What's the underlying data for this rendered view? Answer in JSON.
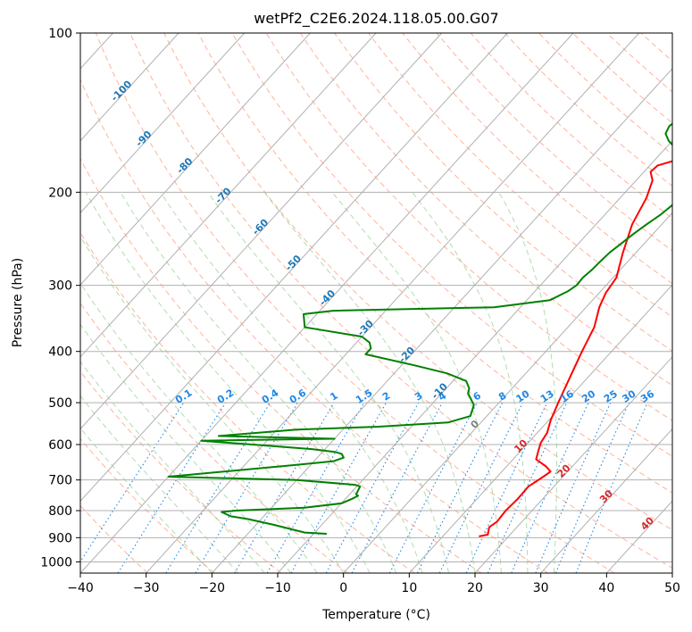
{
  "chart_data": {
    "type": "line",
    "title": "wetPf2_C2E6.2024.118.05.00.G07",
    "xlabel": "Temperature (°C)",
    "ylabel": "Pressure (hPa)",
    "xlim": [
      -40,
      50
    ],
    "ylim": [
      1050,
      100
    ],
    "y_scale": "log",
    "grid": true,
    "x_ticks": [
      -40,
      -30,
      -20,
      -10,
      0,
      10,
      20,
      30,
      40,
      50
    ],
    "y_ticks": [
      100,
      200,
      300,
      400,
      500,
      600,
      700,
      800,
      900,
      1000
    ],
    "colors": {
      "temperature": "#ff0000",
      "dewpoint": "#008000",
      "isotherm": "#b0b0b0",
      "dry_adiabat": "#ff9a7a",
      "moist_adiabat": "#8fcf8f",
      "mixing_ratio": "#1e88e5",
      "adiabat_label": "#1f77b4",
      "isotherm_label": "#d62728",
      "zero_label": "#7f7f7f"
    },
    "series": [
      {
        "key": "temperature",
        "points": [
          [
            15.5,
            895
          ],
          [
            16.6,
            888
          ],
          [
            15.8,
            860
          ],
          [
            16.2,
            840
          ],
          [
            16.0,
            800
          ],
          [
            16.2,
            760
          ],
          [
            16.1,
            720
          ],
          [
            17.0,
            690
          ],
          [
            17.4,
            675
          ],
          [
            16.0,
            660
          ],
          [
            13.5,
            640
          ],
          [
            12.6,
            615
          ],
          [
            11.9,
            595
          ],
          [
            11.5,
            570
          ],
          [
            10.3,
            540
          ],
          [
            9.0,
            500
          ],
          [
            7.0,
            440
          ],
          [
            5.5,
            400
          ],
          [
            4.0,
            360
          ],
          [
            2.0,
            330
          ],
          [
            1.0,
            310
          ],
          [
            0.5,
            290
          ],
          [
            -2.0,
            260
          ],
          [
            -4.5,
            230
          ],
          [
            -6.0,
            205
          ],
          [
            -7.5,
            190
          ],
          [
            -9.0,
            183
          ],
          [
            -8.8,
            178
          ],
          [
            -5.8,
            172
          ],
          [
            -4.3,
            170
          ],
          [
            -2.5,
            167
          ],
          [
            -1.4,
            165
          ],
          [
            -1.1,
            162
          ],
          [
            -0.4,
            155
          ],
          [
            -0.6,
            145
          ],
          [
            -0.6,
            135
          ],
          [
            -1.0,
            128
          ],
          [
            -1.0,
            122
          ],
          [
            -0.9,
            117
          ],
          [
            0.0,
            114
          ],
          [
            1.0,
            112
          ],
          [
            2.0,
            110
          ],
          [
            3.5,
            107
          ],
          [
            5.0,
            104
          ],
          [
            6.5,
            100
          ]
        ]
      },
      {
        "key": "dewpoint",
        "points": [
          [
            -8.0,
            885
          ],
          [
            -11.5,
            880
          ],
          [
            -14.5,
            865
          ],
          [
            -17.5,
            850
          ],
          [
            -22.0,
            830
          ],
          [
            -25.0,
            820
          ],
          [
            -27.0,
            805
          ],
          [
            -25.0,
            800
          ],
          [
            -15.0,
            790
          ],
          [
            -10.0,
            775
          ],
          [
            -9.0,
            760
          ],
          [
            -8.5,
            750
          ],
          [
            -9.0,
            745
          ],
          [
            -9.5,
            720
          ],
          [
            -10.5,
            715
          ],
          [
            -20.0,
            700
          ],
          [
            -40.0,
            690
          ],
          [
            -22.0,
            655
          ],
          [
            -17.0,
            645
          ],
          [
            -16.0,
            635
          ],
          [
            -16.8,
            625
          ],
          [
            -18.0,
            620
          ],
          [
            -22.0,
            612
          ],
          [
            -30.0,
            602
          ],
          [
            -40.0,
            590
          ],
          [
            -20.0,
            585
          ],
          [
            -38.0,
            578
          ],
          [
            -27.0,
            562
          ],
          [
            -15.0,
            555
          ],
          [
            -5.0,
            545
          ],
          [
            -2.5,
            530
          ],
          [
            -3.5,
            505
          ],
          [
            -6.0,
            480
          ],
          [
            -6.5,
            470
          ],
          [
            -8.0,
            455
          ],
          [
            -12.0,
            440
          ],
          [
            -18.0,
            425
          ],
          [
            -27.0,
            405
          ],
          [
            -27.0,
            395
          ],
          [
            -28.0,
            385
          ],
          [
            -30.0,
            375
          ],
          [
            -38.0,
            363
          ],
          [
            -40.0,
            360
          ],
          [
            -42.0,
            340
          ],
          [
            -38.0,
            335
          ],
          [
            -14.0,
            330
          ],
          [
            -6.5,
            320
          ],
          [
            -5.0,
            308
          ],
          [
            -4.5,
            300
          ],
          [
            -4.6,
            290
          ],
          [
            -4.3,
            280
          ],
          [
            -4.2,
            270
          ],
          [
            -4.0,
            260
          ],
          [
            -3.5,
            250
          ],
          [
            -3.0,
            240
          ],
          [
            -2.3,
            230
          ],
          [
            -1.5,
            220
          ],
          [
            -1.0,
            210
          ],
          [
            0.0,
            200
          ],
          [
            -0.5,
            195
          ],
          [
            -1.5,
            190
          ],
          [
            -3.5,
            185
          ],
          [
            -4.5,
            180
          ],
          [
            -5.5,
            175
          ],
          [
            -6.5,
            170
          ],
          [
            -8.5,
            165
          ],
          [
            -10.5,
            160
          ],
          [
            -12.0,
            155
          ],
          [
            -12.5,
            150
          ],
          [
            -12.0,
            145
          ],
          [
            -11.3,
            140
          ],
          [
            -8.5,
            135
          ],
          [
            -5.5,
            128
          ],
          [
            -3.5,
            122
          ],
          [
            -2.2,
            115
          ],
          [
            -1.2,
            110
          ],
          [
            0.0,
            105
          ],
          [
            1.0,
            100
          ]
        ]
      }
    ],
    "mixing_ratio_lines": [
      "0.1",
      "0.2",
      "0.4",
      "0.6",
      "1",
      "1.5",
      "2",
      "3",
      "4",
      "6",
      "8",
      "10",
      "13",
      "16",
      "20",
      "25",
      "30",
      "36"
    ],
    "dry_adiabat_labels": [
      "-100",
      "-90",
      "-80",
      "-70",
      "-60",
      "-50",
      "-40",
      "-30",
      "-20",
      "-10"
    ],
    "isotherm_labels": [
      "0",
      "10",
      "20",
      "30",
      "40"
    ]
  }
}
